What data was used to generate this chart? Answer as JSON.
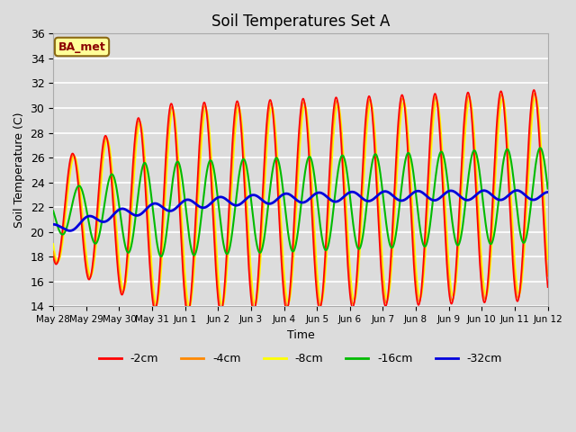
{
  "title": "Soil Temperatures Set A",
  "xlabel": "Time",
  "ylabel": "Soil Temperature (C)",
  "ylim": [
    14,
    36
  ],
  "yticks": [
    14,
    16,
    18,
    20,
    22,
    24,
    26,
    28,
    30,
    32,
    34,
    36
  ],
  "xtick_labels": [
    "May 28",
    "May 29",
    "May 30",
    "May 31",
    "Jun 1",
    "Jun 2",
    "Jun 3",
    "Jun 4",
    "Jun 5",
    "Jun 6",
    "Jun 7",
    "Jun 8",
    "Jun 9",
    "Jun 10",
    "Jun 11",
    "Jun 12"
  ],
  "background_color": "#dcdcdc",
  "plot_bg_color": "#dcdcdc",
  "legend_entries": [
    "-2cm",
    "-4cm",
    "-8cm",
    "-16cm",
    "-32cm"
  ],
  "line_colors": [
    "#ff0000",
    "#ff8800",
    "#ffff00",
    "#00bb00",
    "#0000dd"
  ],
  "line_widths": [
    1.2,
    1.2,
    1.2,
    1.5,
    2.0
  ],
  "annotation_text": "BA_met",
  "annotation_bg": "#ffff99",
  "annotation_border": "#8b6914",
  "n_days": 15
}
